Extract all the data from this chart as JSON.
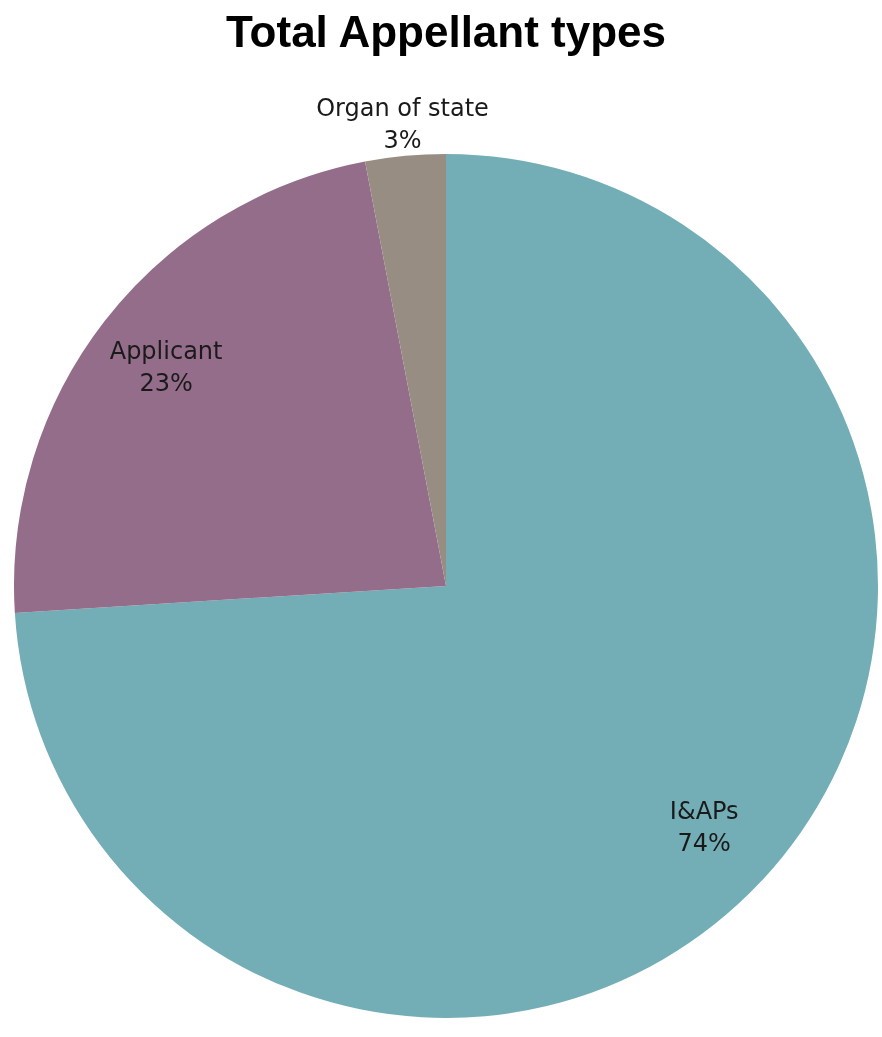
{
  "chart_data": {
    "type": "pie",
    "title": "Total Appellant types",
    "categories": [
      "I&APs",
      "Applicant",
      "Organ of state"
    ],
    "values": [
      74,
      23,
      3
    ],
    "value_labels": [
      "74%",
      "23%",
      "3%"
    ],
    "colors": [
      "#73aeb6",
      "#946d8a",
      "#978d83"
    ],
    "legend": false
  }
}
